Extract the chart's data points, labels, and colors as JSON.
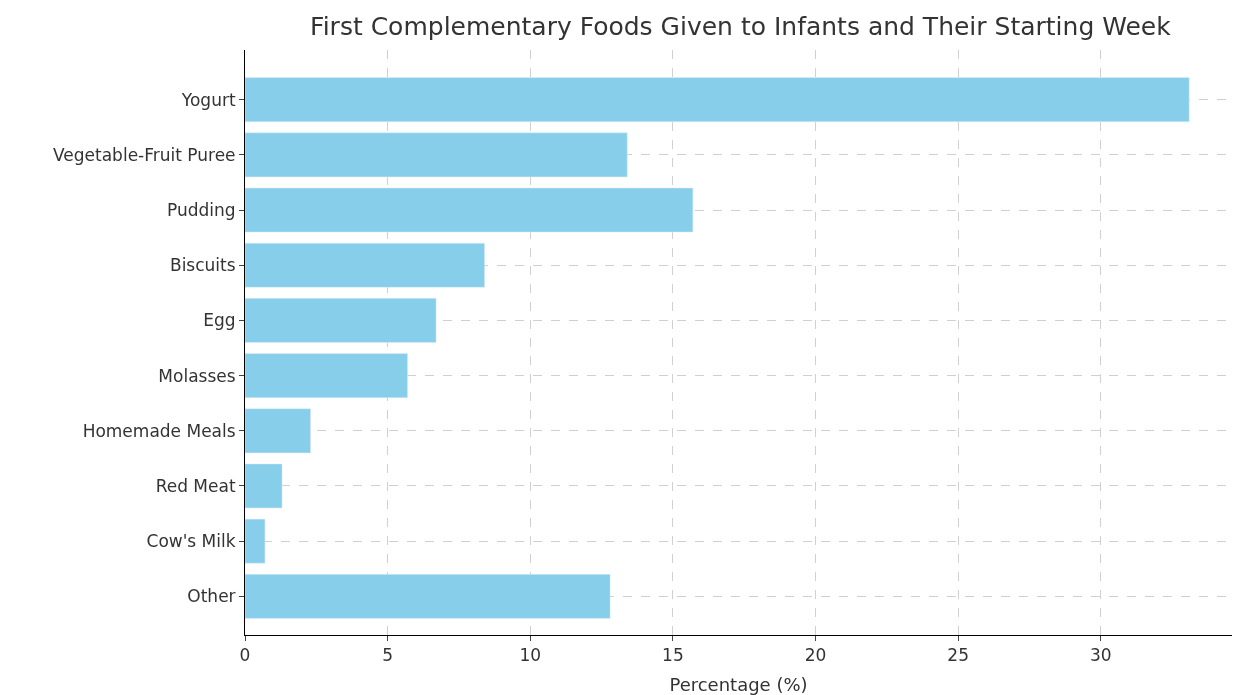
{
  "chart_data": {
    "type": "bar",
    "orientation": "horizontal",
    "title": "First Complementary Foods Given to Infants and Their Starting Week",
    "xlabel": "Percentage (%)",
    "categories": [
      "Yogurt",
      "Vegetable-Fruit Puree",
      "Pudding",
      "Biscuits",
      "Egg",
      "Molasses",
      "Homemade Meals",
      "Red Meat",
      "Cow's Milk",
      "Other"
    ],
    "values": [
      33.1,
      13.4,
      15.7,
      8.4,
      6.7,
      5.7,
      2.3,
      1.3,
      0.7,
      12.8
    ],
    "color": "#87ceeb",
    "xlim": [
      0,
      34.6
    ],
    "xticks": [
      0,
      5,
      10,
      15,
      20,
      25,
      30
    ],
    "grid": true
  }
}
